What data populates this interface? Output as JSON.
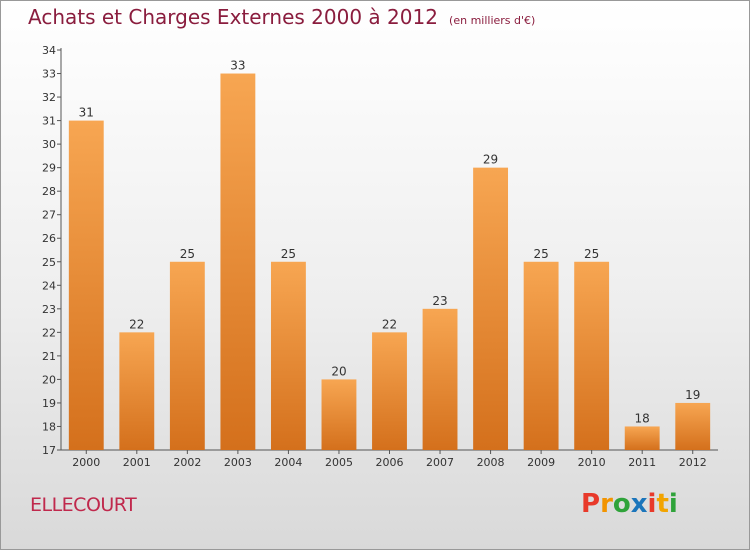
{
  "title": "Achats et Charges Externes 2000 à 2012",
  "subtitle": "(en milliers d'€)",
  "commune": "ELLECOURT",
  "brand": {
    "letters": [
      "P",
      "r",
      "o",
      "x",
      "i",
      "t",
      "i"
    ],
    "colors": [
      "#e8392a",
      "#f29400",
      "#2fa33a",
      "#1b75bb",
      "#e8392a",
      "#f2a400",
      "#2fa33a"
    ]
  },
  "colors": {
    "bar_top": "#f7a652",
    "bar_bottom": "#d4701c",
    "title": "#8a1d3e",
    "commune": "#c0284c"
  },
  "chart_data": {
    "type": "bar",
    "categories": [
      "2000",
      "2001",
      "2002",
      "2003",
      "2004",
      "2005",
      "2006",
      "2007",
      "2008",
      "2009",
      "2010",
      "2011",
      "2012"
    ],
    "values": [
      31,
      22,
      25,
      33,
      25,
      20,
      22,
      23,
      29,
      25,
      25,
      18,
      19
    ],
    "ylim": [
      17,
      34
    ],
    "yticks": [
      17,
      18,
      19,
      20,
      21,
      22,
      23,
      24,
      25,
      26,
      27,
      28,
      29,
      30,
      31,
      32,
      33,
      34
    ],
    "grid": false,
    "legend": "none"
  }
}
